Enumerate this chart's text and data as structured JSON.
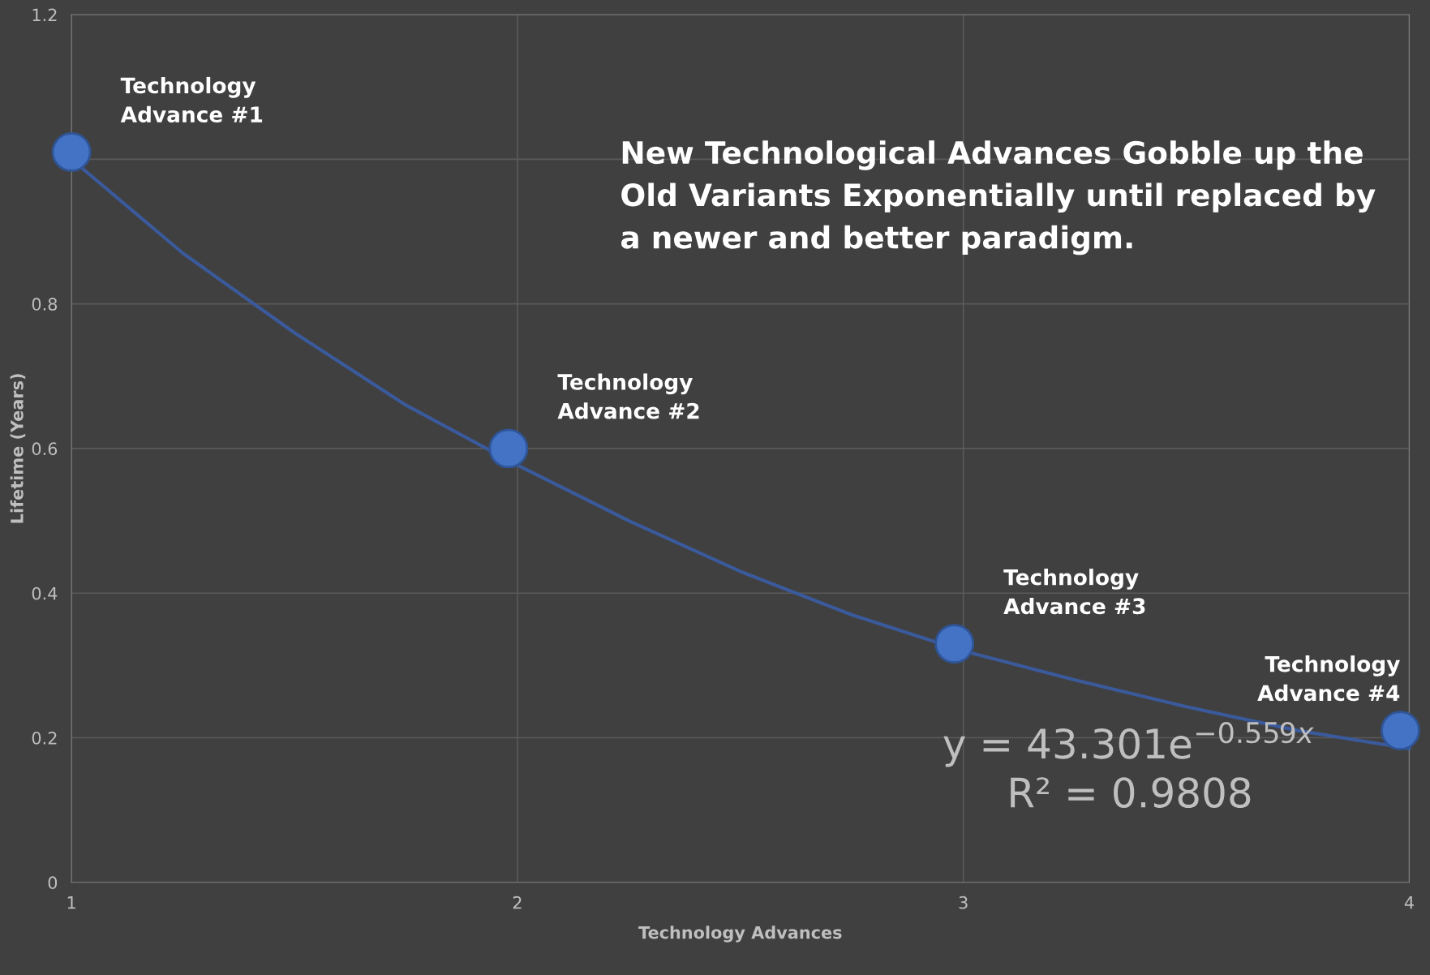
{
  "chart_data": {
    "type": "scatter",
    "xlabel": "Technology Advances",
    "ylabel": "Lifetime (Years)",
    "xlim": [
      1,
      4
    ],
    "ylim": [
      0,
      1.2
    ],
    "xticks": [
      1,
      2,
      3,
      4
    ],
    "yticks": [
      0,
      0.2,
      0.4,
      0.6,
      0.8,
      {
        "value": 1,
        "label": null
      },
      1.2
    ],
    "grid": true,
    "marker": "circle",
    "series": [
      {
        "type": "line",
        "color": "#3a5a9c",
        "line_style": "solid",
        "marker": "none",
        "x": [
          1,
          1.25,
          1.5,
          1.75,
          2,
          2.25,
          2.5,
          2.75,
          3,
          3.25,
          3.5,
          3.75,
          4
        ],
        "values": [
          1.0,
          0.87,
          0.76,
          0.66,
          0.577,
          0.5,
          0.43,
          0.37,
          0.32,
          0.28,
          0.243,
          0.21,
          0.185
        ]
      },
      {
        "color": "#4472c4",
        "x": [
          1,
          1.98,
          2.98,
          3.98
        ],
        "values": [
          1.01,
          0.6,
          0.33,
          0.21
        ]
      }
    ],
    "annotations": [
      {
        "text": "Technology\nAdvance #1",
        "x": 1,
        "y": 1.01
      },
      {
        "text": "Technology\nAdvance #2",
        "x": 1.98,
        "y": 0.6
      },
      {
        "text": "Technology\nAdvance #3",
        "x": 2.98,
        "y": 0.33
      },
      {
        "text": "Technology\nAdvance #4",
        "x": 3.98,
        "y": 0.21
      },
      "New Technological Advances Gobble up the\nOld Variants Exponentially until replaced by\na newer and better paradigm.",
      "y = 43.301e$^{−0.559x}$\n     R² = 0.9808"
    ]
  }
}
